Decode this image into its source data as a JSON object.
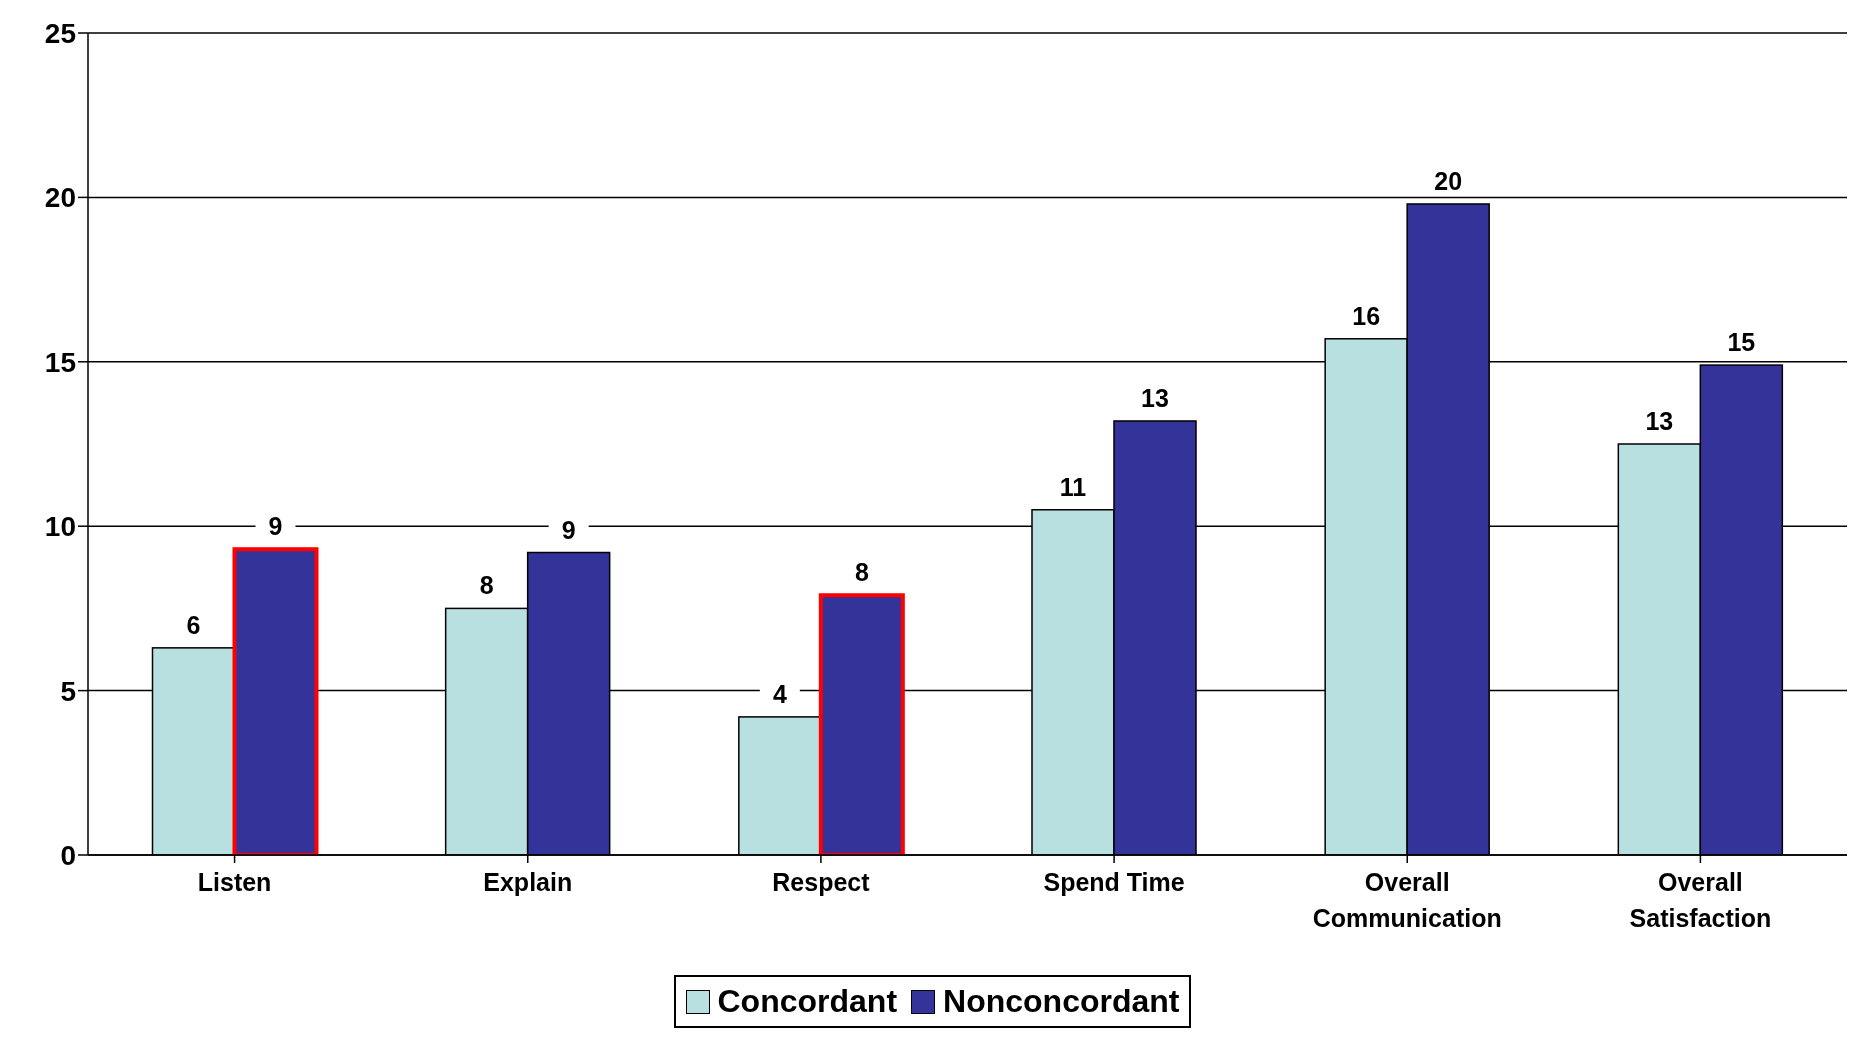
{
  "chart_data": {
    "type": "bar",
    "categories": [
      "Listen",
      "Explain",
      "Respect",
      "Spend Time",
      "Overall Communication",
      "Overall Satisfaction"
    ],
    "series": [
      {
        "name": "Concordant",
        "color": "#b8e0e0",
        "values": [
          6.3,
          7.5,
          4.2,
          10.5,
          15.7,
          12.5
        ],
        "value_labels": [
          "6",
          "8",
          "4",
          "11",
          "16",
          "13"
        ]
      },
      {
        "name": "Nonconcordant",
        "color": "#333399",
        "values": [
          9.3,
          9.2,
          7.9,
          13.2,
          19.8,
          14.9
        ],
        "value_labels": [
          "9",
          "9",
          "8",
          "13",
          "20",
          "15"
        ]
      }
    ],
    "ylim": [
      0,
      25
    ],
    "yticks": [
      0,
      5,
      10,
      15,
      20,
      25
    ],
    "grid": "y",
    "legend": "bottom"
  }
}
